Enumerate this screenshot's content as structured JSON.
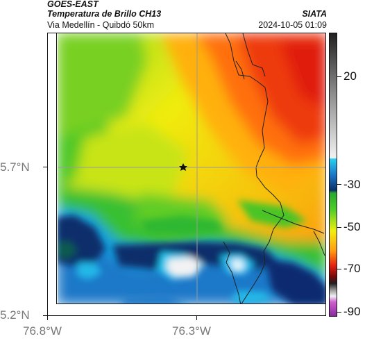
{
  "header": {
    "satellite": "GOES-EAST",
    "product": "Temperatura de Brillo CH13",
    "route": "Via Medellín - Quibdó 50km",
    "agency": "SIATA",
    "timestamp": "2024-10-05 01:09"
  },
  "axes": {
    "lat_ticks": [
      "5.7°N",
      "5.2°N"
    ],
    "lon_ticks": [
      "76.8°W",
      "76.3°W"
    ]
  },
  "colorbar": {
    "labels": [
      "20",
      "-30",
      "-50",
      "-70",
      "-90"
    ],
    "colors": {
      "very_cold": "#b040c0",
      "cold_white": "#f0f0f0",
      "blue_dark": "#08306b",
      "blue": "#1e78c8",
      "cyan": "#18c0e8",
      "green": "#30c030",
      "yellow": "#f2ee10",
      "orange": "#ff9a10",
      "red": "#e82410",
      "grey_warm": "#707070"
    }
  },
  "map": {
    "marker": "star-icon"
  }
}
